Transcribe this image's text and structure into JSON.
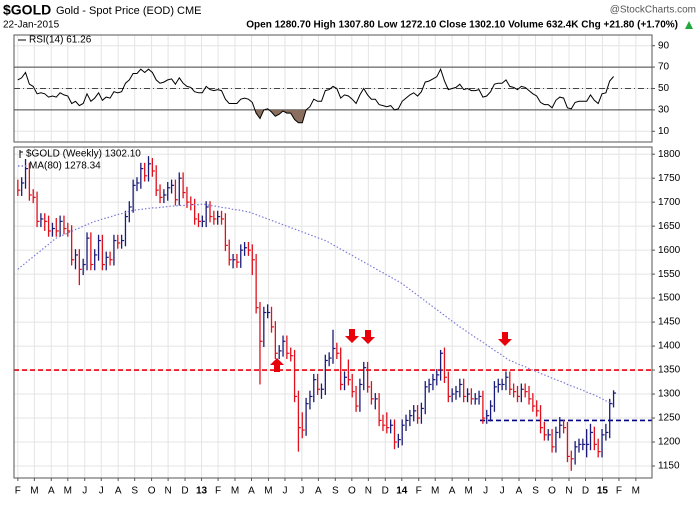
{
  "header": {
    "symbol": "$GOLD",
    "name": "Gold - Spot Price (EOD) CME",
    "date": "22-Jan-2015",
    "quote": "Open 1280.70  High 1307.80  Low 1272.10  Close 1302.10  Volume 632.4K  Chg +21.80 (+1.70%)",
    "source": "@StockCharts.com"
  },
  "chart_data": [
    {
      "type": "line",
      "ylim": [
        0,
        100
      ],
      "yticks": [
        10,
        30,
        50,
        70,
        90
      ],
      "grid": true,
      "hlines": [
        {
          "value": 70,
          "style": "solid"
        },
        {
          "value": 50,
          "style": "dashdot"
        },
        {
          "value": 30,
          "style": "solid"
        }
      ],
      "oversold_fill": {
        "below": 30,
        "color": "#8b6f5e"
      },
      "series": [
        {
          "name": "RSI(14) 61.26",
          "color": "#000000",
          "values": [
            58,
            60,
            65,
            54,
            52,
            45,
            46,
            45,
            42,
            43,
            42,
            46,
            44,
            43,
            36,
            38,
            34,
            36,
            45,
            38,
            41,
            46,
            39,
            42,
            41,
            47,
            46,
            47,
            55,
            58,
            64,
            64,
            68,
            65,
            68,
            65,
            58,
            55,
            56,
            58,
            59,
            54,
            60,
            55,
            52,
            51,
            47,
            46,
            46,
            52,
            49,
            48,
            49,
            48,
            40,
            36,
            36,
            36,
            40,
            41,
            40,
            37,
            27,
            22,
            30,
            31,
            28,
            24,
            26,
            29,
            27,
            27,
            21,
            18,
            18,
            30,
            33,
            40,
            38,
            38,
            48,
            49,
            52,
            50,
            41,
            44,
            43,
            40,
            36,
            44,
            50,
            44,
            40,
            40,
            35,
            34,
            33,
            34,
            30,
            31,
            38,
            41,
            44,
            46,
            43,
            47,
            56,
            57,
            59,
            61,
            68,
            57,
            49,
            50,
            51,
            54,
            49,
            50,
            48,
            48,
            49,
            42,
            43,
            47,
            54,
            55,
            55,
            58,
            52,
            51,
            49,
            52,
            51,
            48,
            45,
            43,
            37,
            35,
            35,
            32,
            39,
            42,
            41,
            32,
            31,
            37,
            38,
            38,
            38,
            44,
            39,
            36,
            45,
            46,
            57,
            61.26
          ]
        }
      ]
    },
    {
      "type": "ohlc",
      "ylim": [
        1125,
        1815
      ],
      "yticks": [
        1150,
        1200,
        1250,
        1300,
        1350,
        1400,
        1450,
        1500,
        1550,
        1600,
        1650,
        1700,
        1750,
        1800
      ],
      "grid": true,
      "xlim": [
        -1,
        165
      ],
      "xticks": [
        {
          "value": 0,
          "label": "F"
        },
        {
          "value": 4.3,
          "label": "M"
        },
        {
          "value": 8.7,
          "label": "A"
        },
        {
          "value": 13,
          "label": "M"
        },
        {
          "value": 17.4,
          "label": "J"
        },
        {
          "value": 21.7,
          "label": "J"
        },
        {
          "value": 26.1,
          "label": "A"
        },
        {
          "value": 30.4,
          "label": "S"
        },
        {
          "value": 34.8,
          "label": "O"
        },
        {
          "value": 39.1,
          "label": "N"
        },
        {
          "value": 43.5,
          "label": "D"
        },
        {
          "value": 47.8,
          "label": "13"
        },
        {
          "value": 52.1,
          "label": "F"
        },
        {
          "value": 56.5,
          "label": "M"
        },
        {
          "value": 60.8,
          "label": "A"
        },
        {
          "value": 65.2,
          "label": "M"
        },
        {
          "value": 69.5,
          "label": "J"
        },
        {
          "value": 73.9,
          "label": "J"
        },
        {
          "value": 78.2,
          "label": "A"
        },
        {
          "value": 82.6,
          "label": "S"
        },
        {
          "value": 86.9,
          "label": "O"
        },
        {
          "value": 91.2,
          "label": "N"
        },
        {
          "value": 95.6,
          "label": "D"
        },
        {
          "value": 99.9,
          "label": "14"
        },
        {
          "value": 104.3,
          "label": "F"
        },
        {
          "value": 108.6,
          "label": "M"
        },
        {
          "value": 113,
          "label": "A"
        },
        {
          "value": 117.3,
          "label": "M"
        },
        {
          "value": 121.7,
          "label": "J"
        },
        {
          "value": 126,
          "label": "J"
        },
        {
          "value": 130.4,
          "label": "A"
        },
        {
          "value": 134.7,
          "label": "S"
        },
        {
          "value": 139,
          "label": "O"
        },
        {
          "value": 143.4,
          "label": "N"
        },
        {
          "value": 147.7,
          "label": "D"
        },
        {
          "value": 152.1,
          "label": "15"
        },
        {
          "value": 156.4,
          "label": "F"
        },
        {
          "value": 160.8,
          "label": "M"
        }
      ],
      "hlines": [
        {
          "value": 1350,
          "color": "#e8000b",
          "style": "dashed"
        },
        {
          "value": 1245,
          "color": "#00008b",
          "style": "dashed"
        }
      ],
      "series": [
        {
          "name": "$GOLD (Weekly) 1302.10",
          "up_color": "#1a1a7a",
          "down_color": "#e0101c",
          "high": [
            1747,
            1752,
            1790,
            1782,
            1727,
            1722,
            1677,
            1677,
            1672,
            1657,
            1667,
            1672,
            1672,
            1657,
            1652,
            1602,
            1602,
            1582,
            1637,
            1637,
            1602,
            1632,
            1632,
            1597,
            1597,
            1632,
            1632,
            1632,
            1682,
            1702,
            1747,
            1752,
            1782,
            1782,
            1796,
            1792,
            1777,
            1737,
            1727,
            1742,
            1747,
            1747,
            1762,
            1762,
            1732,
            1712,
            1707,
            1677,
            1672,
            1702,
            1702,
            1682,
            1682,
            1682,
            1677,
            1622,
            1592,
            1592,
            1612,
            1617,
            1617,
            1612,
            1592,
            1492,
            1482,
            1487,
            1482,
            1452,
            1402,
            1422,
            1422,
            1397,
            1392,
            1307,
            1262,
            1292,
            1307,
            1342,
            1342,
            1322,
            1382,
            1387,
            1434,
            1407,
            1397,
            1347,
            1372,
            1342,
            1317,
            1332,
            1367,
            1367,
            1327,
            1302,
            1302,
            1257,
            1262,
            1247,
            1247,
            1217,
            1247,
            1257,
            1267,
            1277,
            1277,
            1282,
            1327,
            1332,
            1342,
            1352,
            1392,
            1397,
            1347,
            1312,
            1317,
            1332,
            1332,
            1312,
            1312,
            1302,
            1307,
            1307,
            1267,
            1287,
            1327,
            1332,
            1332,
            1347,
            1347,
            1322,
            1317,
            1322,
            1322,
            1317,
            1302,
            1287,
            1277,
            1242,
            1227,
            1227,
            1232,
            1252,
            1247,
            1242,
            1182,
            1202,
            1207,
            1207,
            1227,
            1238,
            1232,
            1207,
            1227,
            1238,
            1290,
            1307.8
          ],
          "low": [
            1713,
            1713,
            1728,
            1703,
            1698,
            1648,
            1648,
            1640,
            1628,
            1628,
            1628,
            1628,
            1633,
            1628,
            1568,
            1560,
            1527,
            1548,
            1558,
            1558,
            1558,
            1578,
            1558,
            1558,
            1568,
            1568,
            1603,
            1603,
            1608,
            1658,
            1678,
            1723,
            1728,
            1743,
            1743,
            1753,
            1713,
            1698,
            1698,
            1703,
            1718,
            1693,
            1693,
            1708,
            1688,
            1683,
            1653,
            1648,
            1648,
            1648,
            1658,
            1653,
            1653,
            1653,
            1598,
            1568,
            1562,
            1563,
            1563,
            1588,
            1588,
            1548,
            1468,
            1320,
            1398,
            1458,
            1428,
            1373,
            1373,
            1378,
            1373,
            1368,
            1283,
            1180,
            1208,
            1213,
            1268,
            1283,
            1298,
            1290,
            1298,
            1358,
            1363,
            1373,
            1308,
            1308,
            1318,
            1293,
            1263,
            1263,
            1308,
            1303,
            1278,
            1268,
            1233,
            1223,
            1218,
            1218,
            1185,
            1188,
            1193,
            1223,
            1233,
            1243,
            1238,
            1238,
            1258,
            1303,
            1308,
            1318,
            1328,
            1323,
            1283,
            1283,
            1288,
            1293,
            1283,
            1283,
            1278,
            1278,
            1278,
            1238,
            1238,
            1243,
            1263,
            1303,
            1308,
            1308,
            1298,
            1293,
            1283,
            1283,
            1293,
            1278,
            1263,
            1253,
            1218,
            1203,
            1203,
            1178,
            1178,
            1208,
            1218,
            1158,
            1140,
            1153,
            1178,
            1183,
            1168,
            1183,
            1183,
            1168,
            1168,
            1203,
            1208,
            1272.1
          ],
          "close": [
            1725,
            1740,
            1770,
            1715,
            1710,
            1660,
            1665,
            1660,
            1640,
            1645,
            1640,
            1660,
            1645,
            1640,
            1580,
            1590,
            1560,
            1570,
            1625,
            1570,
            1590,
            1620,
            1570,
            1585,
            1580,
            1620,
            1615,
            1620,
            1670,
            1690,
            1735,
            1740,
            1770,
            1755,
            1780,
            1765,
            1725,
            1710,
            1715,
            1730,
            1735,
            1705,
            1750,
            1720,
            1700,
            1695,
            1665,
            1660,
            1660,
            1690,
            1670,
            1665,
            1670,
            1665,
            1610,
            1580,
            1580,
            1575,
            1600,
            1605,
            1600,
            1580,
            1480,
            1410,
            1470,
            1470,
            1440,
            1385,
            1390,
            1410,
            1385,
            1380,
            1295,
            1230,
            1225,
            1280,
            1295,
            1330,
            1310,
            1310,
            1370,
            1375,
            1395,
            1385,
            1320,
            1335,
            1330,
            1305,
            1275,
            1320,
            1355,
            1315,
            1290,
            1290,
            1245,
            1235,
            1230,
            1235,
            1200,
            1205,
            1235,
            1245,
            1255,
            1265,
            1250,
            1270,
            1315,
            1320,
            1330,
            1340,
            1385,
            1335,
            1295,
            1300,
            1305,
            1320,
            1295,
            1300,
            1290,
            1290,
            1295,
            1250,
            1255,
            1275,
            1315,
            1320,
            1320,
            1335,
            1310,
            1305,
            1295,
            1310,
            1305,
            1290,
            1275,
            1265,
            1230,
            1215,
            1215,
            1190,
            1220,
            1235,
            1230,
            1170,
            1165,
            1190,
            1195,
            1195,
            1195,
            1220,
            1195,
            1180,
            1215,
            1220,
            1280.3,
            1302.1
          ]
        },
        {
          "name": "MA(80) 1278.34",
          "color": "#7b7bd8",
          "style": "dotted",
          "values": [
            1560,
            1567,
            1573,
            1580,
            1586,
            1593,
            1599,
            1606,
            1612,
            1619,
            1625,
            1629,
            1632,
            1636,
            1639,
            1643,
            1646,
            1650,
            1653,
            1657,
            1660,
            1662,
            1665,
            1667,
            1669,
            1672,
            1674,
            1676,
            1678,
            1681,
            1683,
            1684,
            1685,
            1686,
            1687,
            1688,
            1688,
            1689,
            1690,
            1691,
            1692,
            1692,
            1693,
            1693,
            1694,
            1694,
            1695,
            1695,
            1696,
            1695,
            1693,
            1692,
            1691,
            1689,
            1688,
            1687,
            1685,
            1684,
            1683,
            1681,
            1680,
            1677,
            1674,
            1671,
            1668,
            1665,
            1662,
            1659,
            1656,
            1653,
            1650,
            1647,
            1644,
            1641,
            1638,
            1635,
            1632,
            1629,
            1626,
            1623,
            1620,
            1616,
            1611,
            1607,
            1602,
            1598,
            1593,
            1589,
            1584,
            1580,
            1575,
            1571,
            1566,
            1562,
            1557,
            1553,
            1548,
            1544,
            1539,
            1535,
            1530,
            1524,
            1518,
            1512,
            1506,
            1500,
            1494,
            1488,
            1482,
            1476,
            1470,
            1464,
            1458,
            1452,
            1446,
            1440,
            1435,
            1429,
            1424,
            1418,
            1413,
            1408,
            1402,
            1397,
            1391,
            1386,
            1381,
            1375,
            1370,
            1367,
            1363,
            1360,
            1357,
            1353,
            1350,
            1347,
            1343,
            1340,
            1337,
            1333,
            1330,
            1327,
            1324,
            1320,
            1317,
            1314,
            1311,
            1308,
            1304,
            1301,
            1298,
            1294,
            1290,
            1286,
            1282,
            1278.34
          ]
        }
      ]
    }
  ]
}
